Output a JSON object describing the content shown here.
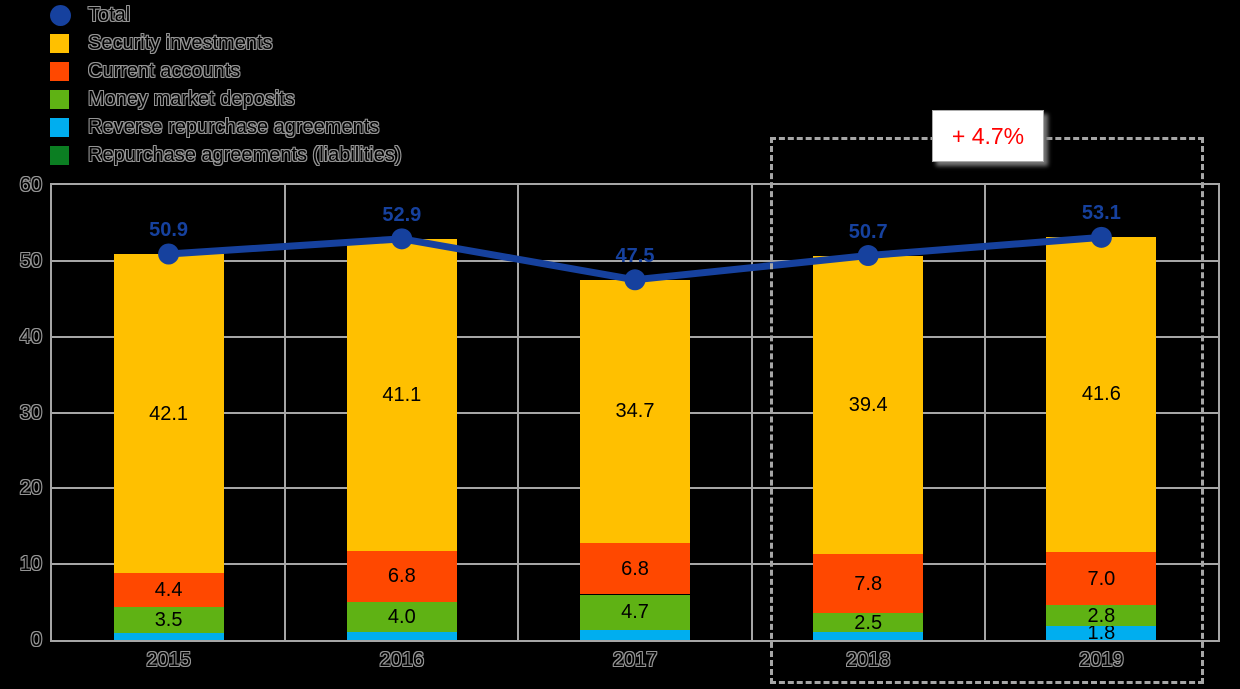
{
  "canvas": {
    "background": "#000000"
  },
  "legend": {
    "items": [
      {
        "label": "Total",
        "color": "#16419E",
        "marker": "circle"
      },
      {
        "label": "Security investments",
        "color": "#FFC000",
        "marker": "square"
      },
      {
        "label": "Current accounts",
        "color": "#FF4800",
        "marker": "square"
      },
      {
        "label": "Money market deposits",
        "color": "#5FB214",
        "marker": "square"
      },
      {
        "label": "Reverse repurchase agreements",
        "color": "#00AEEF",
        "marker": "square"
      },
      {
        "label": "Repurchase agreements (liabilities)",
        "color": "#0B7E22",
        "marker": "square"
      }
    ]
  },
  "annotation": {
    "label": "+ 4.7%",
    "text_color": "#FF0000",
    "applies_to": [
      "2018",
      "2019"
    ]
  },
  "chart_data": {
    "type": "bar",
    "stacked": true,
    "categories": [
      "2015",
      "2016",
      "2017",
      "2018",
      "2019"
    ],
    "series": [
      {
        "name": "Reverse repurchase agreements",
        "color": "#00AEEF",
        "values": [
          0.9,
          1.0,
          1.3,
          1.0,
          1.8
        ],
        "value_labels": [
          "",
          "",
          "",
          "",
          "1.8"
        ]
      },
      {
        "name": "Money market deposits",
        "color": "#5FB214",
        "values": [
          3.5,
          4.0,
          4.7,
          2.5,
          2.8
        ],
        "value_labels": [
          "3.5",
          "4.0",
          "4.7",
          "2.5",
          "2.8"
        ]
      },
      {
        "name": "Current accounts",
        "color": "#FF4800",
        "values": [
          4.4,
          6.8,
          6.8,
          7.8,
          7.0
        ],
        "value_labels": [
          "4.4",
          "6.8",
          "6.8",
          "7.8",
          "7.0"
        ]
      },
      {
        "name": "Security investments",
        "color": "#FFC000",
        "values": [
          42.1,
          41.1,
          34.7,
          39.4,
          41.6
        ],
        "value_labels": [
          "42.1",
          "41.1",
          "34.7",
          "39.4",
          "41.6"
        ]
      },
      {
        "name": "Repurchase agreements (liabilities)",
        "color": "#0B7E22",
        "values": [
          0,
          0,
          0,
          0,
          0
        ],
        "value_labels": [
          "",
          "",
          "",
          "",
          ""
        ]
      }
    ],
    "line": {
      "name": "Total",
      "color": "#16419E",
      "values": [
        50.9,
        52.9,
        47.5,
        50.7,
        53.1
      ],
      "point_labels": [
        "50.9",
        "52.9",
        "47.5",
        "50.7",
        "53.1"
      ]
    },
    "ylim": [
      0,
      60
    ],
    "yticks": [
      0,
      10,
      20,
      30,
      40,
      50,
      60
    ],
    "grid": true,
    "legend_position": "top-left",
    "gridline_color": "#A6A6A6"
  }
}
